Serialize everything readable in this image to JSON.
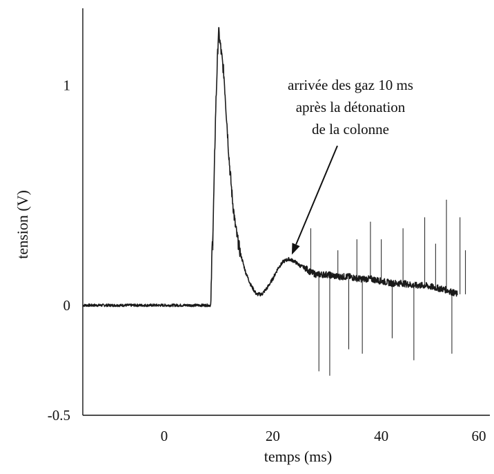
{
  "chart_data": {
    "type": "line",
    "title": "",
    "xlabel": "temps (ms)",
    "ylabel": "tension (V)",
    "xlim": [
      -15,
      60
    ],
    "ylim": [
      -0.5,
      1.35
    ],
    "x_ticks": [
      {
        "value": 0,
        "label": "0"
      },
      {
        "value": 20,
        "label": "20"
      },
      {
        "value": 40,
        "label": "40"
      },
      {
        "value": 60,
        "label": "60"
      }
    ],
    "y_ticks": [
      {
        "value": -0.5,
        "label": "-0.5"
      },
      {
        "value": 0,
        "label": "0"
      },
      {
        "value": 1,
        "label": "1"
      }
    ],
    "grid": false,
    "legend": "none",
    "line_color": "#1a1a1a",
    "series": [
      {
        "x": [
          -15,
          -10,
          -5,
          -1,
          0,
          2,
          5,
          8.0,
          8.6,
          8.8,
          9.0,
          9.5,
          10.0,
          10.5,
          11.0,
          11.5,
          12.0,
          12.5,
          13.0,
          13.5,
          14.0,
          15.0,
          16.0,
          17.0,
          18.0,
          19.0,
          20.0,
          21.0,
          22.0,
          23.0,
          24.0,
          25.0,
          26.0,
          27.0,
          28.0,
          30.0,
          32.0,
          34.0,
          36.0,
          38.0,
          40.0,
          42.0,
          44.0,
          46.0,
          48.0,
          50.0,
          52.0,
          54.0
        ],
        "y": [
          0.0,
          0.0,
          0.0,
          0.0,
          0.0,
          0.0,
          0.0,
          0.0,
          0.0,
          0.25,
          0.35,
          0.9,
          1.25,
          1.15,
          1.05,
          0.85,
          0.65,
          0.5,
          0.38,
          0.3,
          0.24,
          0.15,
          0.09,
          0.05,
          0.05,
          0.08,
          0.12,
          0.17,
          0.2,
          0.21,
          0.2,
          0.18,
          0.17,
          0.15,
          0.14,
          0.14,
          0.13,
          0.13,
          0.12,
          0.12,
          0.11,
          0.1,
          0.1,
          0.09,
          0.09,
          0.08,
          0.07,
          0.05
        ]
      }
    ],
    "spikes": [
      {
        "x": 2,
        "y": -0.005
      },
      {
        "x": 9,
        "y": 0.25
      },
      {
        "x": 27,
        "y": 0.35
      },
      {
        "x": 28.5,
        "y": -0.3
      },
      {
        "x": 30.5,
        "y": -0.32
      },
      {
        "x": 32,
        "y": 0.25
      },
      {
        "x": 34,
        "y": -0.2
      },
      {
        "x": 35.5,
        "y": 0.3
      },
      {
        "x": 36.5,
        "y": -0.22
      },
      {
        "x": 38,
        "y": 0.38
      },
      {
        "x": 40,
        "y": 0.3
      },
      {
        "x": 42,
        "y": -0.15
      },
      {
        "x": 44,
        "y": 0.35
      },
      {
        "x": 46,
        "y": -0.25
      },
      {
        "x": 48,
        "y": 0.4
      },
      {
        "x": 50,
        "y": 0.28
      },
      {
        "x": 52,
        "y": 0.48
      },
      {
        "x": 53,
        "y": -0.22
      },
      {
        "x": 54.5,
        "y": 0.4
      },
      {
        "x": 55.5,
        "y": 0.25
      }
    ],
    "annotation": {
      "lines": [
        "arrivée des gaz 10 ms",
        "après la détonation",
        "de la colonne"
      ],
      "arrow_to": {
        "x": 23.5,
        "y": 0.23
      }
    }
  }
}
